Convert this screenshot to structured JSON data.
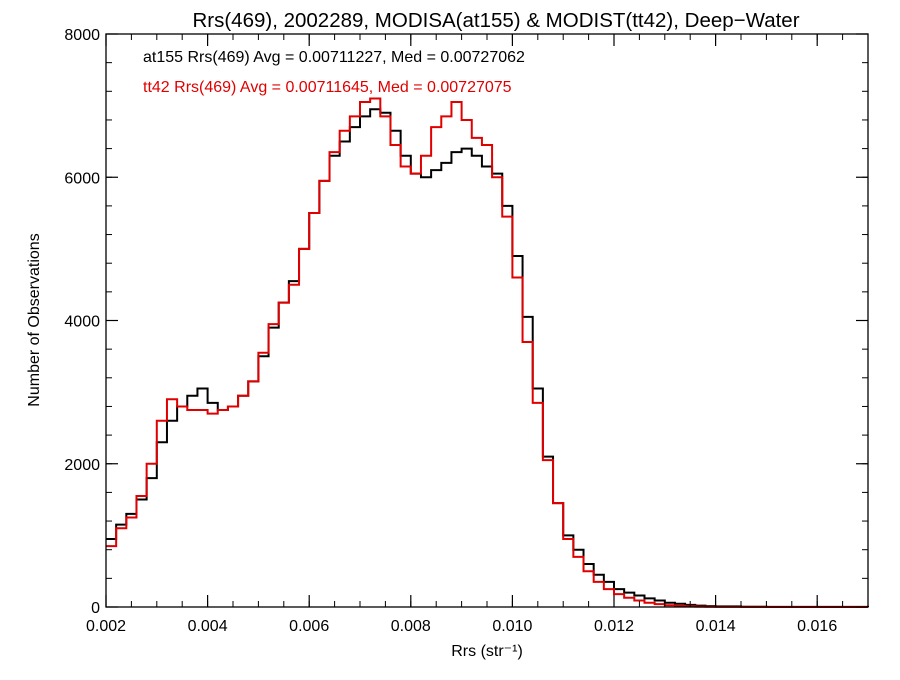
{
  "chart_data": {
    "type": "line",
    "title": "Rrs(469), 2002289, MODISA(at155) & MODIST(tt42), Deep−Water",
    "xlabel": "Rrs (str⁻¹)",
    "ylabel": "Number of Observations",
    "xlim": [
      0.002,
      0.017
    ],
    "ylim": [
      0,
      8000
    ],
    "xticks": [
      0.002,
      0.004,
      0.006,
      0.008,
      0.01,
      0.012,
      0.014,
      0.016
    ],
    "xtick_labels": [
      "0.002",
      "0.004",
      "0.006",
      "0.008",
      "0.010",
      "0.012",
      "0.014",
      "0.016"
    ],
    "yticks": [
      0,
      2000,
      4000,
      6000,
      8000
    ],
    "ytick_labels": [
      "0",
      "2000",
      "4000",
      "6000",
      "8000"
    ],
    "grid": false,
    "legend_placement": "top-left",
    "annotations": [
      {
        "text": "at155 Rrs(469) Avg = 0.00711227, Med = 0.00727062",
        "color": "#000000"
      },
      {
        "text": "tt42 Rrs(469) Avg = 0.00711645, Med = 0.00727075",
        "color": "#e00000"
      }
    ],
    "series": [
      {
        "color": "#000000",
        "x": [
          0.002,
          0.0022,
          0.0024,
          0.0026,
          0.0028,
          0.003,
          0.0032,
          0.0034,
          0.0036,
          0.0038,
          0.004,
          0.0042,
          0.0044,
          0.0046,
          0.0048,
          0.005,
          0.0052,
          0.0054,
          0.0056,
          0.0058,
          0.006,
          0.0062,
          0.0064,
          0.0066,
          0.0068,
          0.007,
          0.0072,
          0.0074,
          0.0076,
          0.0078,
          0.008,
          0.0082,
          0.0084,
          0.0086,
          0.0088,
          0.009,
          0.0092,
          0.0094,
          0.0096,
          0.0098,
          0.01,
          0.0102,
          0.0104,
          0.0106,
          0.0108,
          0.011,
          0.0112,
          0.0114,
          0.0116,
          0.0118,
          0.012,
          0.0122,
          0.0124,
          0.0126,
          0.0128,
          0.013,
          0.0132,
          0.0134,
          0.0136,
          0.0138,
          0.014,
          0.0145,
          0.015,
          0.016,
          0.017
        ],
        "values": [
          950,
          1150,
          1300,
          1500,
          1800,
          2300,
          2600,
          2800,
          2950,
          3050,
          2850,
          2750,
          2800,
          2950,
          3150,
          3500,
          3900,
          4250,
          4550,
          5000,
          5500,
          5950,
          6300,
          6500,
          6700,
          6850,
          6950,
          6900,
          6650,
          6300,
          6050,
          6000,
          6100,
          6200,
          6350,
          6400,
          6300,
          6150,
          6050,
          5600,
          4900,
          4050,
          3050,
          2100,
          1450,
          1000,
          800,
          600,
          450,
          350,
          250,
          200,
          160,
          120,
          90,
          60,
          45,
          30,
          20,
          12,
          8,
          4,
          2,
          1,
          0
        ]
      },
      {
        "color": "#e00000",
        "x": [
          0.002,
          0.0022,
          0.0024,
          0.0026,
          0.0028,
          0.003,
          0.0032,
          0.0034,
          0.0036,
          0.0038,
          0.004,
          0.0042,
          0.0044,
          0.0046,
          0.0048,
          0.005,
          0.0052,
          0.0054,
          0.0056,
          0.0058,
          0.006,
          0.0062,
          0.0064,
          0.0066,
          0.0068,
          0.007,
          0.0072,
          0.0074,
          0.0076,
          0.0078,
          0.008,
          0.0082,
          0.0084,
          0.0086,
          0.0088,
          0.009,
          0.0092,
          0.0094,
          0.0096,
          0.0098,
          0.01,
          0.0102,
          0.0104,
          0.0106,
          0.0108,
          0.011,
          0.0112,
          0.0114,
          0.0116,
          0.0118,
          0.012,
          0.0122,
          0.0124,
          0.0126,
          0.0128,
          0.013,
          0.0132,
          0.0134,
          0.0136,
          0.0138,
          0.014,
          0.0145,
          0.015,
          0.016,
          0.017
        ],
        "values": [
          850,
          1100,
          1250,
          1550,
          2000,
          2600,
          2900,
          2800,
          2750,
          2750,
          2700,
          2750,
          2800,
          2950,
          3150,
          3550,
          3950,
          4250,
          4500,
          5000,
          5500,
          5950,
          6350,
          6650,
          6850,
          7050,
          7100,
          6850,
          6450,
          6150,
          6050,
          6300,
          6700,
          6850,
          7050,
          6800,
          6550,
          6450,
          6000,
          5450,
          4600,
          3700,
          2850,
          2050,
          1450,
          950,
          700,
          500,
          350,
          250,
          180,
          130,
          90,
          60,
          40,
          25,
          15,
          10,
          6,
          4,
          2,
          1,
          0,
          0,
          0
        ]
      }
    ]
  }
}
